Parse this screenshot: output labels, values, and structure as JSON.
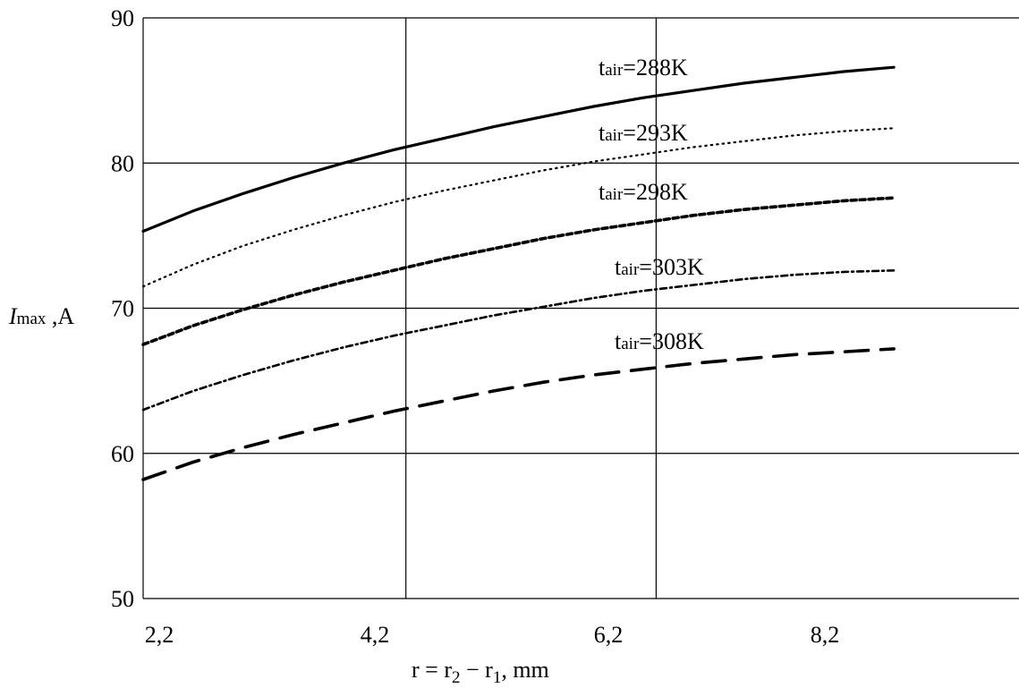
{
  "chart_data": {
    "type": "line",
    "title": "",
    "xlabel": {
      "base": "r = r",
      "sub1": "2",
      "mid": " − r",
      "sub2": "1",
      "end": ", mm"
    },
    "ylabel": {
      "italic": "I",
      "sub": "max",
      "end": " ,A"
    },
    "xlim": [
      2.2,
      9.2
    ],
    "ylim": [
      50,
      90
    ],
    "x_ticks": [
      "2,2",
      "4,2",
      "6,2",
      "8,2"
    ],
    "y_ticks": [
      "50",
      "60",
      "70",
      "80",
      "90"
    ],
    "grid": true,
    "x": [
      2.2,
      2.6,
      3.0,
      3.4,
      3.8,
      4.2,
      4.6,
      5.0,
      5.4,
      5.8,
      6.2,
      6.6,
      7.0,
      7.4,
      7.8,
      8.2,
      8.6,
      9.0
    ],
    "series": [
      {
        "name": "t_air=288K",
        "label_main": "t",
        "label_sub": "air",
        "label_end": "=288K",
        "style": "solid",
        "values": [
          75.3,
          76.7,
          77.9,
          79.0,
          80.0,
          80.9,
          81.7,
          82.5,
          83.2,
          83.9,
          84.5,
          85.0,
          85.5,
          85.9,
          86.3,
          86.6,
          86.8,
          86.9
        ]
      },
      {
        "name": "t_air=293K",
        "label_main": "t",
        "label_sub": "air",
        "label_end": "=293K",
        "style": "dotted",
        "values": [
          71.5,
          73.0,
          74.3,
          75.4,
          76.4,
          77.3,
          78.1,
          78.8,
          79.5,
          80.1,
          80.6,
          81.1,
          81.5,
          81.9,
          82.2,
          82.4,
          82.4,
          82.4
        ]
      },
      {
        "name": "t_air=298K",
        "label_main": "t",
        "label_sub": "air",
        "label_end": "=298K",
        "style": "dashdot",
        "values": [
          67.5,
          68.8,
          69.9,
          70.9,
          71.8,
          72.6,
          73.4,
          74.1,
          74.8,
          75.4,
          75.9,
          76.4,
          76.8,
          77.1,
          77.4,
          77.6,
          77.6,
          77.6
        ]
      },
      {
        "name": "t_air=303K",
        "label_main": "t",
        "label_sub": "air",
        "label_end": "=303K",
        "style": "dotdash",
        "values": [
          63.0,
          64.3,
          65.4,
          66.4,
          67.3,
          68.1,
          68.8,
          69.5,
          70.1,
          70.7,
          71.2,
          71.6,
          72.0,
          72.3,
          72.5,
          72.6,
          72.6,
          72.6
        ]
      },
      {
        "name": "t_air=308K",
        "label_main": "t",
        "label_sub": "air",
        "label_end": "=308K",
        "style": "dashed",
        "values": [
          58.2,
          59.4,
          60.4,
          61.3,
          62.1,
          62.9,
          63.6,
          64.3,
          64.9,
          65.4,
          65.8,
          66.2,
          66.5,
          66.8,
          67.0,
          67.2,
          67.3,
          67.3
        ]
      }
    ]
  }
}
